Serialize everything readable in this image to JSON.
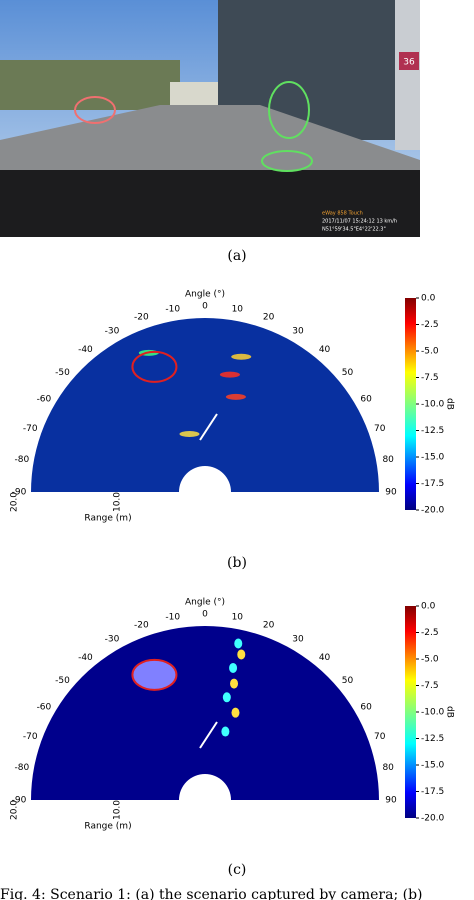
{
  "panel_a": {
    "sign": "36",
    "overlay": [
      "eWay 858 Touch",
      "2017/11/07 15:24:12  13 km/h",
      "N51°59'34.5\"E4°22'22.3\""
    ],
    "label": "(a)"
  },
  "panel_b": {
    "angle_title": "Angle (°)",
    "angles": [
      "-90",
      "-80",
      "-70",
      "-60",
      "-50",
      "-40",
      "-30",
      "-20",
      "-10",
      "0",
      "10",
      "20",
      "30",
      "40",
      "50",
      "60",
      "70",
      "80",
      "90"
    ],
    "range_title": "Range (m)",
    "range_ticks": [
      "20.0",
      "10.0"
    ],
    "colorbar_ticks": [
      "0.0",
      "-2.5",
      "-5.0",
      "-7.5",
      "-10.0",
      "-12.5",
      "-15.0",
      "-17.5",
      "-20.0"
    ],
    "colorbar_title": "dB",
    "label": "(b)"
  },
  "panel_c": {
    "angle_title": "Angle (°)",
    "angles": [
      "-90",
      "-80",
      "-70",
      "-60",
      "-50",
      "-40",
      "-30",
      "-20",
      "-10",
      "0",
      "10",
      "20",
      "30",
      "40",
      "50",
      "60",
      "70",
      "80",
      "90"
    ],
    "range_title": "Range (m)",
    "range_ticks": [
      "20.0",
      "10.0"
    ],
    "colorbar_ticks": [
      "0.0",
      "-2.5",
      "-5.0",
      "-7.5",
      "-10.0",
      "-12.5",
      "-15.0",
      "-17.5",
      "-20.0"
    ],
    "colorbar_title": "dB",
    "label": "(c)"
  },
  "caption": "Fig. 4: Scenario 1: (a) the scenario captured by camera; (b)"
}
